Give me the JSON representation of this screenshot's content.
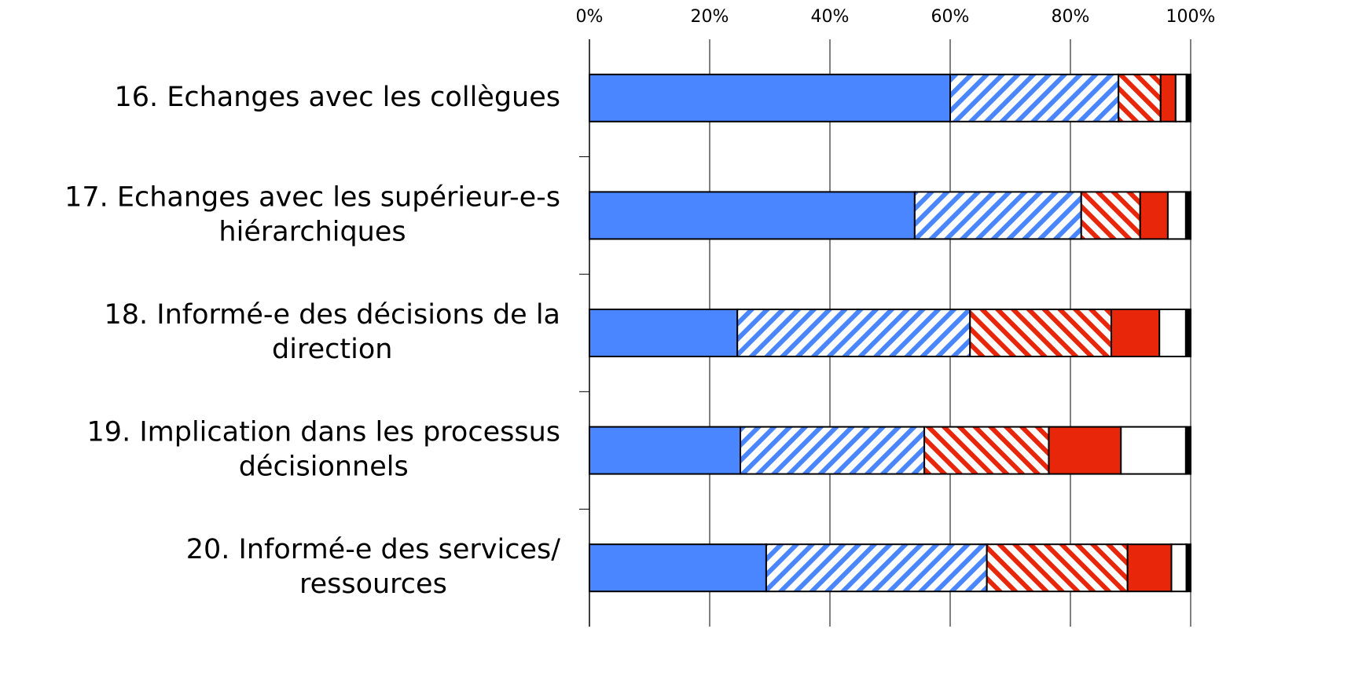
{
  "chart_data": {
    "type": "stacked_barh",
    "categories": [
      [
        "16. Echanges avec les collègues"
      ],
      [
        "17. Echanges avec les supérieur-e-s",
        "hiérarchiques"
      ],
      [
        "18. Informé-e des décisions de la",
        "direction"
      ],
      [
        "19. Implication dans les processus",
        "décisionnels"
      ],
      [
        "20. Informé-e des services/",
        "ressources"
      ]
    ],
    "series": [
      {
        "color": "#4a86ff",
        "pattern": "solid",
        "values": [
          60,
          54.1,
          24.6,
          25.1,
          29.4
        ]
      },
      {
        "color": "#4a86ff",
        "pattern": "hatch-up",
        "values": [
          28,
          27.7,
          38.7,
          30.6,
          36.7
        ]
      },
      {
        "color": "#e8260a",
        "pattern": "hatch-down",
        "values": [
          7,
          9.8,
          23.5,
          20.7,
          23.4
        ]
      },
      {
        "color": "#e8260a",
        "pattern": "solid",
        "values": [
          2.5,
          4.6,
          8.0,
          12.0,
          7.3
        ]
      },
      {
        "color": "#ffffff",
        "pattern": "solid",
        "values": [
          1.8,
          3.0,
          4.4,
          10.8,
          2.5
        ]
      },
      {
        "color": "#000000",
        "pattern": "solid",
        "values": [
          0.7,
          0.8,
          0.8,
          0.8,
          0.7
        ]
      }
    ],
    "xlim": [
      0,
      100
    ],
    "xticks": [
      {
        "value": 0,
        "label": "0%"
      },
      {
        "value": 20,
        "label": "20%"
      },
      {
        "value": 40,
        "label": "40%"
      },
      {
        "value": 60,
        "label": "60%"
      },
      {
        "value": 80,
        "label": "80%"
      },
      {
        "value": 100,
        "label": "100%"
      }
    ],
    "grid": true
  }
}
